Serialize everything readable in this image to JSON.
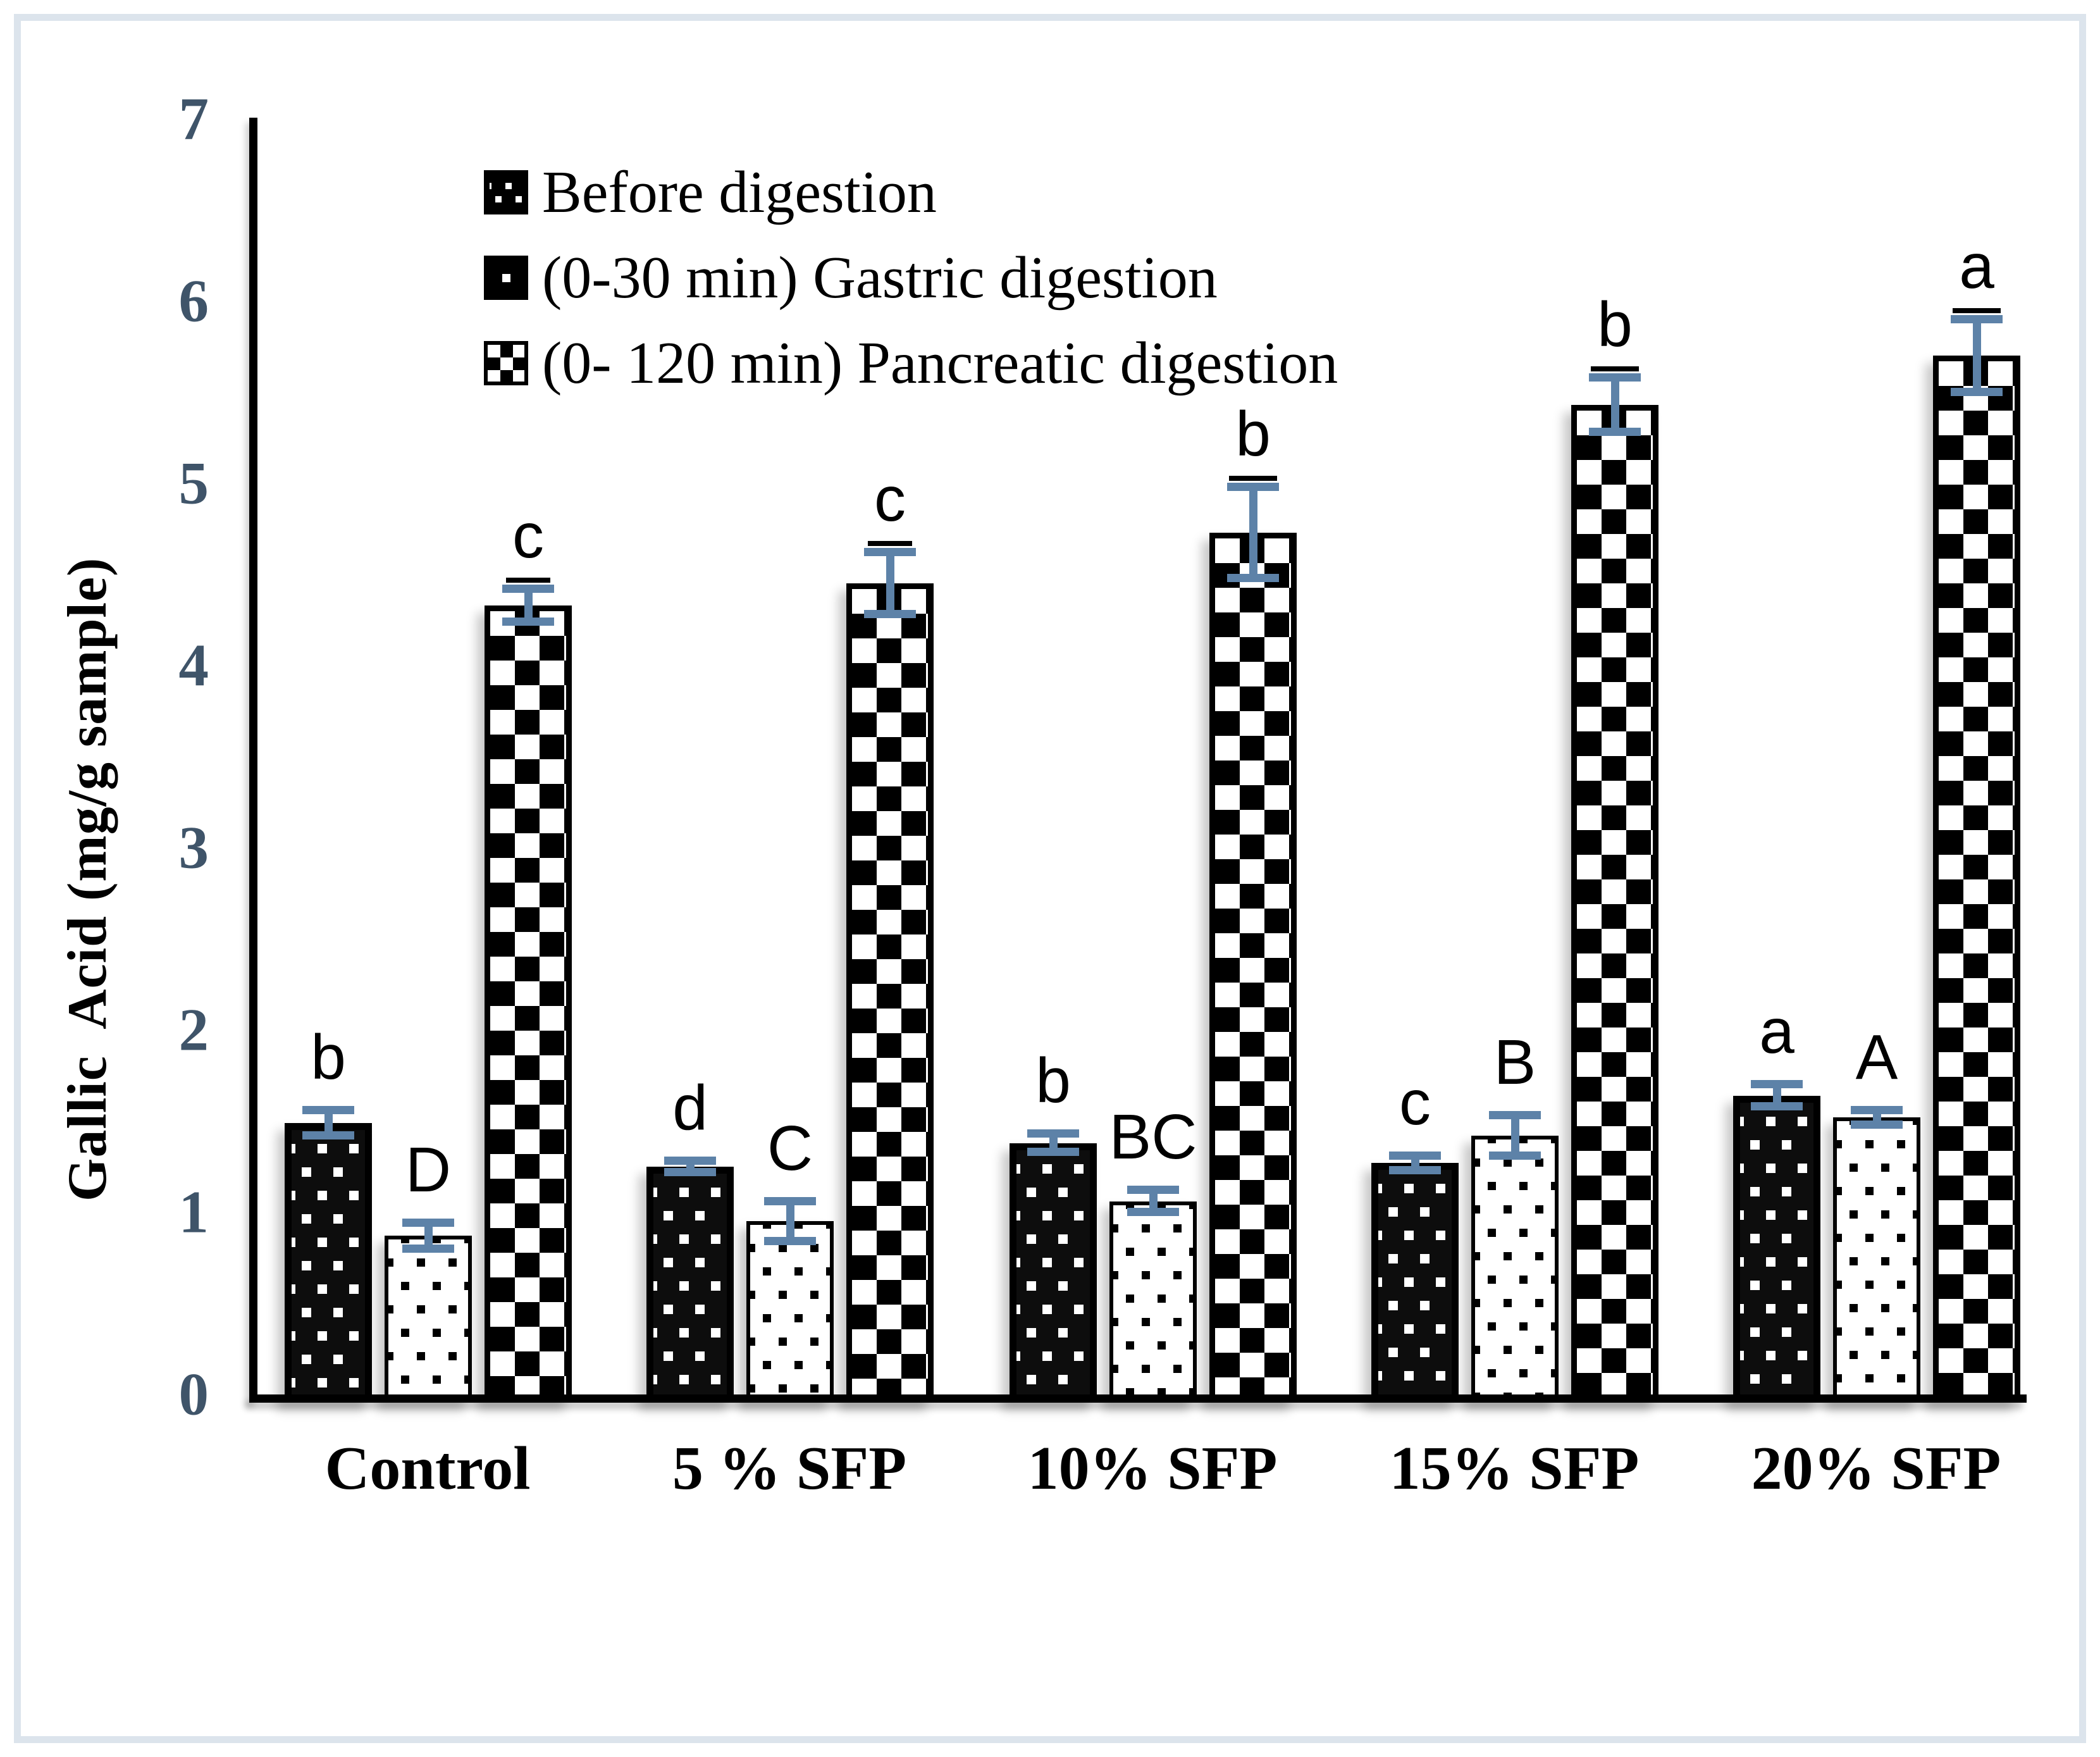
{
  "chart_data": {
    "type": "bar",
    "title": "",
    "xlabel": "",
    "ylabel": "Gallic  Acid (mg/g sample)",
    "ylim": [
      0,
      7
    ],
    "yticks": [
      0,
      1,
      2,
      3,
      4,
      5,
      6,
      7
    ],
    "grid": false,
    "legend_position": "top-left-inside",
    "categories": [
      "Control",
      "5 % SFP",
      "10% SFP",
      "15% SFP",
      "20% SFP"
    ],
    "series": [
      {
        "name": "Before digestion",
        "pattern": "white-with-black-dots",
        "values": [
          1.49,
          1.25,
          1.38,
          1.27,
          1.64
        ],
        "errors": [
          0.07,
          0.03,
          0.05,
          0.04,
          0.06
        ],
        "letters": [
          "b",
          "d",
          "b",
          "c",
          "a"
        ],
        "letters_underlined": false
      },
      {
        "name": "(0-30 min) Gastric digestion",
        "pattern": "black-with-white-dots",
        "values": [
          0.87,
          0.95,
          1.06,
          1.42,
          1.52
        ],
        "errors": [
          0.07,
          0.11,
          0.06,
          0.11,
          0.04
        ],
        "letters": [
          "D",
          "C",
          "BC",
          "B",
          "A"
        ],
        "letters_underlined": false
      },
      {
        "name": "(0- 120 min) Pancreatic digestion",
        "pattern": "black-white-checkerboard",
        "values": [
          4.33,
          4.45,
          4.73,
          5.43,
          5.7
        ],
        "errors": [
          0.09,
          0.17,
          0.25,
          0.15,
          0.2
        ],
        "letters": [
          "c",
          "c",
          "b",
          "b",
          "a"
        ],
        "letters_underlined": true
      }
    ],
    "colors": {
      "error_bar": "#5d82a8",
      "tick_label": "#3f5469",
      "axis_line": "#000000",
      "frame_border": "#dce4ec",
      "letter_color": "#000000",
      "background": "#ffffff"
    }
  }
}
